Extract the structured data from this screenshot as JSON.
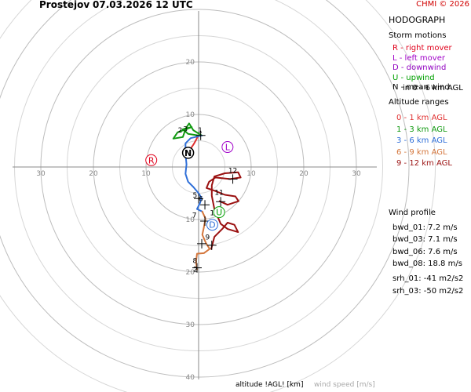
{
  "header": {
    "station": "Prostejov",
    "datetime": "07.03.2026 12 UTC",
    "copyright": "CHMI © 2026"
  },
  "panel": {
    "title": "HODOGRAPH",
    "storm_heading": "Storm motions",
    "storm_items": [
      {
        "text": "R - right mover",
        "color": "#e0001b"
      },
      {
        "text": "L - left mover",
        "color": "#a000c8"
      },
      {
        "text": "D - downwind",
        "color": "#9000c0"
      },
      {
        "text": "U - upwind",
        "color": "#00a000"
      },
      {
        "text": "N - mean wind",
        "color": "#000000"
      }
    ],
    "mean_wind_note": "in 0 - 6 km AGL",
    "altitude_heading": "Altitude ranges",
    "altitude_items": [
      {
        "text": "0 - 1 km AGL",
        "color": "#e03030"
      },
      {
        "text": "1 - 3 km AGL",
        "color": "#119a11"
      },
      {
        "text": "3 - 6 km AGL",
        "color": "#2f6fd8"
      },
      {
        "text": "6 - 9 km AGL",
        "color": "#d4763c"
      },
      {
        "text": "9 - 12 km AGL",
        "color": "#9a1010"
      }
    ],
    "wind_profile_heading": "Wind profile",
    "wind_profile_items": [
      "bwd_01: 7.2 m/s",
      "bwd_03: 7.1 m/s",
      "bwd_06: 7.6 m/s",
      "bwd_08: 18.8 m/s"
    ],
    "srh_items": [
      "srh_01: -41 m2/s2",
      "srh_03: -50 m2/s2"
    ]
  },
  "footer": {
    "altitude_label": "altitude !AGL! [km]",
    "speed_label": "wind speed [m/s]"
  },
  "chart_data": {
    "type": "line",
    "rings": [
      10,
      20,
      30,
      40
    ],
    "ring_labels": [
      "10",
      "20",
      "30",
      "40"
    ],
    "axis_tick_labels": [
      "30",
      "20",
      "10",
      "10",
      "20",
      "30"
    ],
    "range": [
      -35,
      35
    ],
    "storm_motions": [
      {
        "label": "R",
        "u": -9.0,
        "v": 1.3,
        "color": "#e0001b"
      },
      {
        "label": "L",
        "u": 5.5,
        "v": 3.8,
        "color": "#a000c8"
      },
      {
        "label": "D",
        "u": 2.6,
        "v": -11.0,
        "color": "#2f6fd8"
      },
      {
        "label": "U",
        "u": 3.9,
        "v": -8.6,
        "color": "#00a000"
      },
      {
        "label": "N",
        "u": -2.0,
        "v": 2.7,
        "color": "#000000"
      }
    ],
    "series": [
      {
        "name": "0 - 1 km AGL",
        "color": "#e03030",
        "points": [
          [
            -2.0,
            2.7
          ],
          [
            -1.5,
            3.5
          ],
          [
            -0.9,
            4.4
          ],
          [
            -0.4,
            5.3
          ],
          [
            -0.1,
            6.0
          ]
        ]
      },
      {
        "name": "1 - 3 km AGL",
        "color": "#119a11",
        "points": [
          [
            -0.1,
            6.0
          ],
          [
            -2.0,
            6.3
          ],
          [
            -3.0,
            7.2
          ],
          [
            -1.3,
            7.6
          ],
          [
            -4.0,
            6.6
          ],
          [
            -4.8,
            5.4
          ],
          [
            -3.0,
            5.7
          ],
          [
            -2.4,
            7.4
          ],
          [
            -1.8,
            8.3
          ],
          [
            -1.0,
            7.0
          ],
          [
            0.6,
            6.0
          ]
        ]
      },
      {
        "name": "3 - 6 km AGL",
        "color": "#2f6fd8",
        "points": [
          [
            0.6,
            6.0
          ],
          [
            -1.5,
            5.5
          ],
          [
            -2.5,
            4.5
          ],
          [
            -2.5,
            2.5
          ],
          [
            -2.3,
            0.5
          ],
          [
            -2.5,
            -1.3
          ],
          [
            -2.0,
            -2.8
          ],
          [
            -1.0,
            -3.8
          ],
          [
            0.0,
            -5.0
          ],
          [
            0.5,
            -5.8
          ],
          [
            0.3,
            -6.8
          ],
          [
            -0.3,
            -8.0
          ],
          [
            0.7,
            -8.5
          ]
        ]
      },
      {
        "name": "6 - 9 km AGL",
        "color": "#d4763c",
        "points": [
          [
            0.7,
            -8.5
          ],
          [
            1.3,
            -9.8
          ],
          [
            1.0,
            -11.5
          ],
          [
            0.7,
            -12.9
          ],
          [
            1.4,
            -14.5
          ],
          [
            2.1,
            -15.6
          ],
          [
            1.0,
            -16.4
          ],
          [
            -0.3,
            -16.5
          ],
          [
            -0.5,
            -18.0
          ],
          [
            -0.3,
            -19.5
          ]
        ]
      },
      {
        "name": "9 - 12 km AGL",
        "color": "#9a1010",
        "points": [
          [
            4.0,
            -6.5
          ],
          [
            5.5,
            -7.2
          ],
          [
            7.6,
            -6.5
          ],
          [
            7.0,
            -5.6
          ],
          [
            5.0,
            -5.3
          ],
          [
            3.0,
            -4.5
          ],
          [
            1.5,
            -4.0
          ],
          [
            2.0,
            -2.8
          ],
          [
            3.2,
            -2.0
          ],
          [
            6.0,
            -2.3
          ],
          [
            8.0,
            -2.0
          ],
          [
            7.5,
            -1.0
          ],
          [
            5.0,
            -1.2
          ],
          [
            3.0,
            -1.8
          ],
          [
            2.5,
            -3.5
          ],
          [
            2.5,
            -5.5
          ],
          [
            3.0,
            -8.0
          ],
          [
            4.2,
            -10.8
          ],
          [
            5.5,
            -11.8
          ],
          [
            7.5,
            -12.4
          ],
          [
            6.8,
            -11.0
          ],
          [
            5.5,
            -10.6
          ],
          [
            4.5,
            -11.8
          ],
          [
            3.0,
            -13.3
          ],
          [
            2.4,
            -15.6
          ]
        ]
      }
    ],
    "height_labels": [
      {
        "text": "0",
        "u": -2.0,
        "v": 2.7
      },
      {
        "text": "1",
        "u": 0.3,
        "v": 6.6
      },
      {
        "text": "2",
        "u": -3.5,
        "v": 6.6
      },
      {
        "text": "3",
        "u": -2.5,
        "v": 6.8
      },
      {
        "text": "5",
        "u": -0.7,
        "v": -5.8
      },
      {
        "text": "6",
        "u": 0.4,
        "v": -6.5
      },
      {
        "text": "7",
        "u": -0.8,
        "v": -9.6
      },
      {
        "text": "9",
        "u": 1.7,
        "v": -13.8
      },
      {
        "text": "10",
        "u": 3.0,
        "v": -9.2
      },
      {
        "text": "11",
        "u": 3.9,
        "v": -5.3
      },
      {
        "text": "12",
        "u": 6.5,
        "v": -1.1
      },
      {
        "text": "8",
        "u": -0.7,
        "v": -18.3
      },
      {
        "text": "2",
        "u": -0.6,
        "v": -19.9
      }
    ],
    "crosses": [
      [
        0.4,
        6.0
      ],
      [
        0.0,
        -6.0
      ],
      [
        1.2,
        -7.2
      ],
      [
        1.2,
        -10.3
      ],
      [
        2.5,
        -14.9
      ],
      [
        -0.3,
        -19.2
      ],
      [
        4.2,
        -6.6
      ],
      [
        6.5,
        -2.3
      ],
      [
        0.6,
        -14.6
      ]
    ]
  }
}
